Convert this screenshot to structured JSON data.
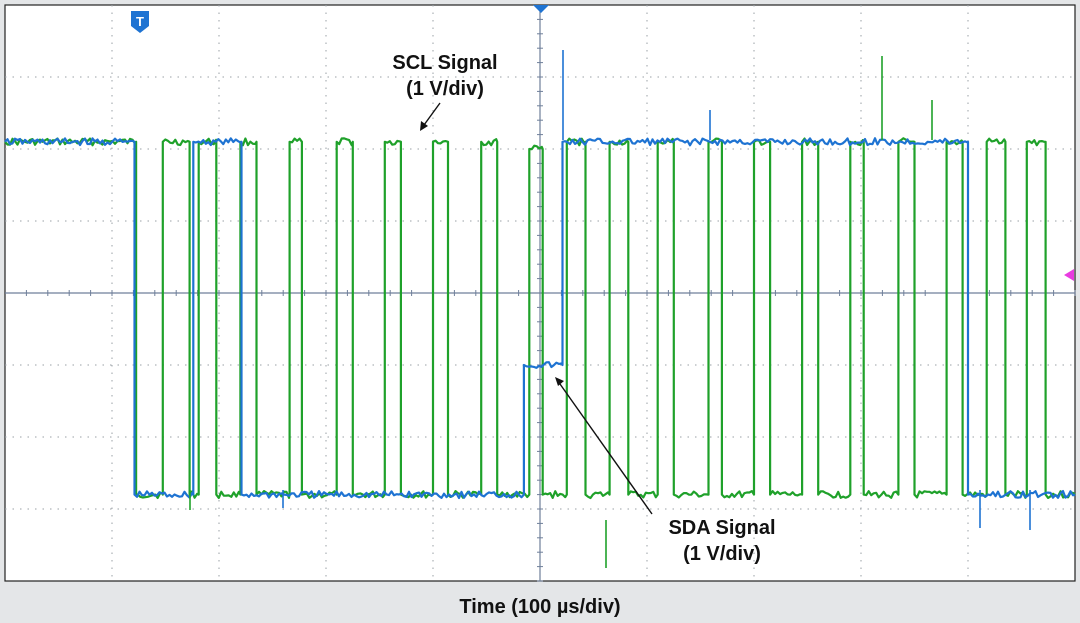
{
  "chart_data": {
    "type": "line",
    "xlabel": "Time (100 µs/div)",
    "x_divisions": 10,
    "y_divisions": 8,
    "grid": true,
    "trigger_marker": "T",
    "x_unit": "div",
    "y_unit": "div",
    "series": [
      {
        "name": "SCL Signal",
        "scale_label": "(1 V/div)",
        "color": "#1fa12a",
        "x": [
          0,
          2.45,
          2.45,
          2.48,
          2.48,
          2.95,
          2.95,
          3.45,
          3.45,
          3.62,
          3.62,
          3.95,
          3.95,
          4.4,
          4.4,
          4.7,
          4.7,
          5.32,
          5.32,
          5.55,
          5.55,
          6.2,
          6.2,
          6.5,
          6.5,
          7.1,
          7.1,
          7.4,
          7.4,
          8.0,
          8.0,
          8.28,
          8.28,
          8.9,
          8.9,
          9.2,
          9.2,
          9.8,
          9.8,
          10.05,
          10.05,
          10.5,
          10.5,
          10.85,
          10.85,
          11.3,
          11.3,
          11.65,
          11.65,
          12.2,
          12.2,
          12.5,
          12.5,
          13.15,
          13.15,
          13.4,
          13.4,
          14.0,
          14.0,
          14.3,
          14.3,
          14.9,
          14.9,
          15.2,
          15.2,
          15.8,
          15.8,
          16.05,
          16.05,
          16.7,
          16.7,
          17.0,
          17.0,
          17.6,
          17.6,
          17.9,
          17.9,
          18.35,
          18.35,
          18.7,
          18.7,
          19.1,
          19.1,
          19.45,
          19.45,
          20.0
        ],
        "y": [
          2.1,
          2.1,
          -2.8,
          -2.8,
          -2.8,
          -2.8,
          2.1,
          2.1,
          -2.8,
          -2.8,
          2.1,
          2.1,
          -2.8,
          -2.8,
          2.1,
          2.1,
          -2.8,
          -2.8,
          2.1,
          2.1,
          -2.8,
          -2.8,
          2.1,
          2.1,
          -2.8,
          -2.8,
          2.1,
          2.1,
          -2.8,
          -2.8,
          2.1,
          2.1,
          -2.8,
          -2.8,
          2.1,
          2.1,
          -2.8,
          -2.8,
          2.0,
          2.0,
          -2.8,
          -2.8,
          2.1,
          2.1,
          -2.8,
          -2.8,
          2.1,
          2.1,
          -2.8,
          -2.8,
          2.1,
          2.1,
          -2.8,
          -2.8,
          2.1,
          2.1,
          -2.8,
          -2.8,
          2.1,
          2.1,
          -2.8,
          -2.8,
          2.1,
          2.1,
          -2.8,
          -2.8,
          2.1,
          2.1,
          -2.8,
          -2.8,
          2.1,
          2.1,
          -2.8,
          -2.8,
          2.1,
          2.1,
          -2.8,
          -2.8,
          2.1,
          2.1,
          -2.8,
          -2.8,
          2.1,
          2.1,
          -2.8,
          -2.8
        ]
      },
      {
        "name": "SDA Signal",
        "scale_label": "(1 V/div)",
        "color": "#1e73d2",
        "x": [
          0,
          2.42,
          2.42,
          3.52,
          3.52,
          4.42,
          4.42,
          9.7,
          9.7,
          10.42,
          10.42,
          18.0,
          18.0,
          20.0
        ],
        "y": [
          2.1,
          2.1,
          -2.8,
          -2.8,
          2.1,
          2.1,
          -2.8,
          -2.8,
          -1.0,
          -1.0,
          2.1,
          2.1,
          -2.8,
          -2.8
        ]
      }
    ]
  }
}
